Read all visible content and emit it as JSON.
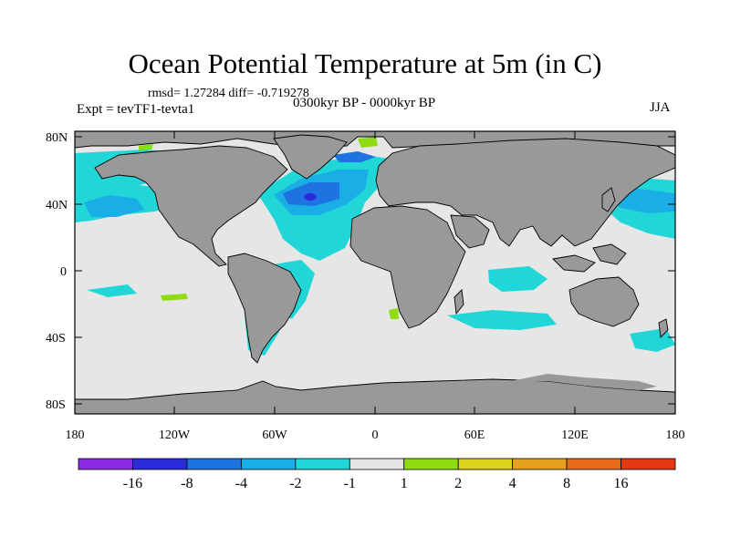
{
  "title": "Ocean Potential Temperature at 5m (in C)",
  "stats_line": "rmsd= 1.27284  diff= -0.719278",
  "experiment": "Expt = tevTF1-tevta1",
  "period": "0300kyr BP - 0000kyr BP",
  "season": "JJA",
  "axes": {
    "y_ticks": [
      "80N",
      "40N",
      "0",
      "40S",
      "80S"
    ],
    "x_ticks": [
      "180",
      "120W",
      "60W",
      "0",
      "60E",
      "120E",
      "180"
    ]
  },
  "colorbar": {
    "labels": [
      "-16",
      "-8",
      "-4",
      "-2",
      "-1",
      "1",
      "2",
      "4",
      "8",
      "16"
    ],
    "colors": [
      "#8b2be2",
      "#2b2bd9",
      "#1e73e0",
      "#19aee6",
      "#21d6d6",
      "#e6e6e6",
      "#8fdc14",
      "#dcd21e",
      "#e6a21e",
      "#e66a1a",
      "#e23a14"
    ]
  },
  "colors": {
    "land": "#999999",
    "ocean_neutral": "#e6e6e6",
    "cyan": "#21d6d6",
    "light_blue": "#19aee6",
    "mid_blue": "#1e73e0",
    "dark_blue": "#2b2bd9",
    "green": "#8fdc14"
  }
}
